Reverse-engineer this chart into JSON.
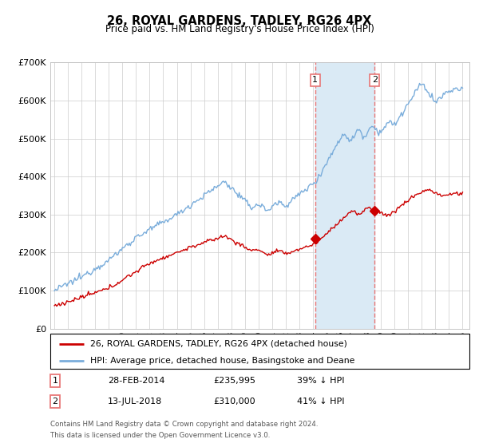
{
  "title": "26, ROYAL GARDENS, TADLEY, RG26 4PX",
  "subtitle": "Price paid vs. HM Land Registry's House Price Index (HPI)",
  "legend_line1": "26, ROYAL GARDENS, TADLEY, RG26 4PX (detached house)",
  "legend_line2": "HPI: Average price, detached house, Basingstoke and Deane",
  "annotation1_label": "1",
  "annotation1_date": "28-FEB-2014",
  "annotation1_price": "£235,995",
  "annotation1_hpi": "39% ↓ HPI",
  "annotation2_label": "2",
  "annotation2_date": "13-JUL-2018",
  "annotation2_price": "£310,000",
  "annotation2_hpi": "41% ↓ HPI",
  "footnote1": "Contains HM Land Registry data © Crown copyright and database right 2024.",
  "footnote2": "This data is licensed under the Open Government Licence v3.0.",
  "hpi_color": "#7aaddb",
  "price_color": "#cc0000",
  "background_color": "#ffffff",
  "plot_bg_color": "#ffffff",
  "shaded_region_color": "#daeaf5",
  "dashed_line_color": "#e87777",
  "ylim": [
    0,
    700000
  ],
  "yticks": [
    0,
    100000,
    200000,
    300000,
    400000,
    500000,
    600000,
    700000
  ],
  "xlim_start": 1994.7,
  "xlim_end": 2025.5,
  "marker1_year": 2014.16,
  "marker2_year": 2018.54,
  "marker1_y": 235995,
  "marker2_y": 310000,
  "vline1_year": 2014.16,
  "vline2_year": 2018.54
}
